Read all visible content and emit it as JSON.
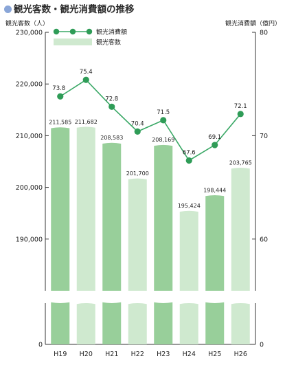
{
  "title": "観光客数・観光消費額の推移",
  "chart_data": {
    "type": "bar+line",
    "categories": [
      "H19",
      "H20",
      "H21",
      "H22",
      "H23",
      "H24",
      "H25",
      "H26"
    ],
    "series": [
      {
        "name": "観光客数",
        "kind": "bar",
        "axis": "left",
        "values": [
          211585,
          211682,
          208583,
          201700,
          208169,
          195424,
          198444,
          203765
        ],
        "labels": [
          "211,585",
          "211,682",
          "208,583",
          "201,700",
          "208,169",
          "195,424",
          "198,444",
          "203,765"
        ]
      },
      {
        "name": "観光消費額",
        "kind": "line",
        "axis": "right",
        "values": [
          73.8,
          75.4,
          72.8,
          70.4,
          71.5,
          67.6,
          69.1,
          72.1
        ],
        "labels": [
          "73.8",
          "75.4",
          "72.8",
          "70.4",
          "71.5",
          "67.6",
          "69.1",
          "72.1"
        ]
      }
    ],
    "ylabel_left": "観光客数（人）",
    "ylabel_right": "観光消費額（億円）",
    "y_left_ticks": [
      "230,000",
      "220,000",
      "210,000",
      "200,000",
      "190,000",
      "0"
    ],
    "y_left_range": [
      180000,
      230000
    ],
    "y_left_axis_break": true,
    "y_right_ticks": [
      "80",
      "70",
      "60",
      "0"
    ],
    "y_right_range": [
      55,
      80
    ],
    "y_right_axis_break": true,
    "legend_position": "top-left",
    "legend": [
      "観光消費額",
      "観光客数"
    ],
    "grid": false,
    "colors": {
      "bar_dark": "#98cf9a",
      "bar_light": "#cfe9cf",
      "line": "#3aa866",
      "marker": "#2f9c57"
    }
  }
}
